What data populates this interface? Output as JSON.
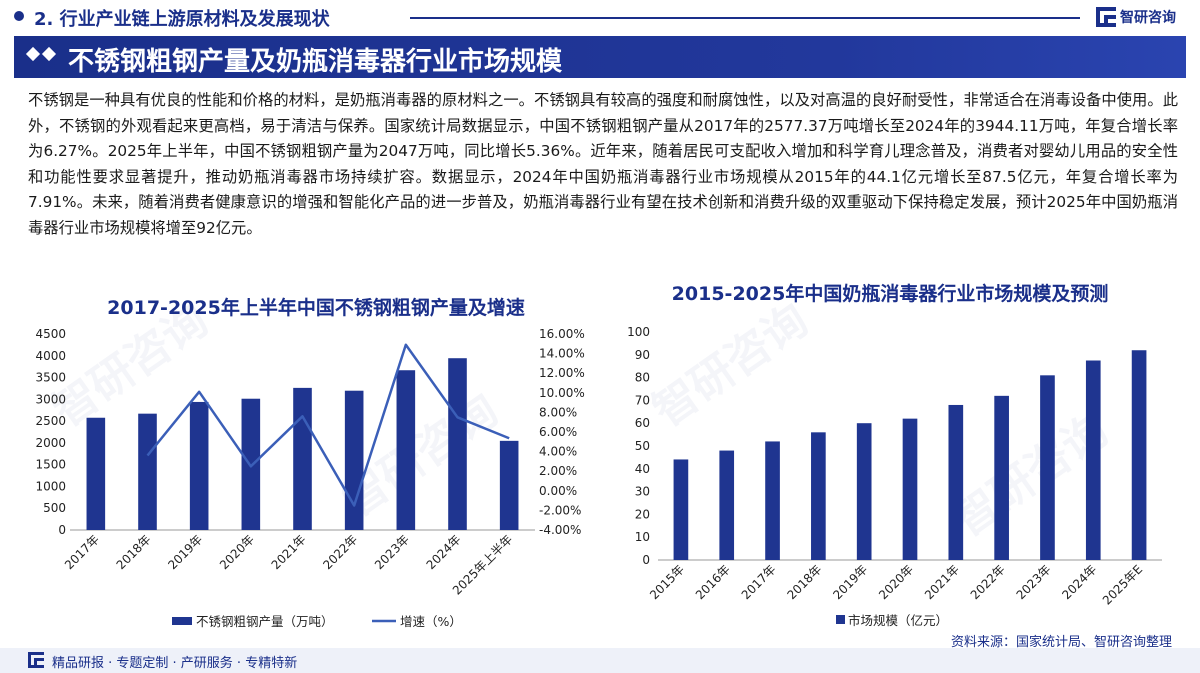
{
  "header": {
    "section_label": "2. 行业产业链上游原材料及发展现状",
    "logo_text": "智研咨询",
    "logo_icon": "zhiyan-logo-icon"
  },
  "title": {
    "text": "不锈钢粗钢产量及奶瓶消毒器行业市场规模"
  },
  "paragraph": "不锈钢是一种具有优良的性能和价格的材料，是奶瓶消毒器的原材料之一。不锈钢具有较高的强度和耐腐蚀性，以及对高温的良好耐受性，非常适合在消毒设备中使用。此外，不锈钢的外观看起来更高档，易于清洁与保养。国家统计局数据显示，中国不锈钢粗钢产量从2017年的2577.37万吨增长至2024年的3944.11万吨，年复合增长率为6.27%。2025年上半年，中国不锈钢粗钢产量为2047万吨，同比增长5.36%。近年来，随着居民可支配收入增加和科学育儿理念普及，消费者对婴幼儿用品的安全性和功能性要求显著提升，推动奶瓶消毒器市场持续扩容。数据显示，2024年中国奶瓶消毒器行业市场规模从2015年的44.1亿元增长至87.5亿元，年复合增长率为7.91%。未来，随着消费者健康意识的增强和智能化产品的进一步普及，奶瓶消毒器行业有望在技术创新和消费升级的双重驱动下保持稳定发展，预计2025年中国奶瓶消毒器行业市场规模将增至92亿元。",
  "watermark": "智研咨询",
  "source": "资料来源：国家统计局、智研咨询整理",
  "footer": {
    "text": "精品研报 · 专题定制 · 产研服务 · 专精特新"
  },
  "colors": {
    "brand": "#1a2f8a",
    "bar": "#1f3590",
    "line": "#3b5fb8"
  },
  "chart_data": [
    {
      "type": "bar",
      "title": "2017-2025年上半年中国不锈钢粗钢产量及增速",
      "categories": [
        "2017年",
        "2018年",
        "2019年",
        "2020年",
        "2021年",
        "2022年",
        "2023年",
        "2024年",
        "2025年上半年"
      ],
      "series": [
        {
          "name": "不锈钢粗钢产量（万吨）",
          "type": "bar",
          "axis": "left",
          "values": [
            2577.37,
            2671,
            2940,
            3014,
            3263,
            3198,
            3668,
            3944.11,
            2047
          ]
        },
        {
          "name": "增速（%）",
          "type": "line",
          "axis": "right",
          "values": [
            null,
            3.6,
            10.1,
            2.5,
            7.6,
            -1.5,
            14.9,
            7.5,
            5.36
          ]
        }
      ],
      "ylim": [
        0,
        4500
      ],
      "yticks": [
        0,
        500,
        1000,
        1500,
        2000,
        2500,
        3000,
        3500,
        4000,
        4500
      ],
      "y2lim": [
        -4,
        16
      ],
      "y2ticks": [
        "-4.00%",
        "-2.00%",
        "0.00%",
        "2.00%",
        "4.00%",
        "6.00%",
        "8.00%",
        "10.00%",
        "12.00%",
        "14.00%",
        "16.00%"
      ],
      "grid": false,
      "legend": "bottom"
    },
    {
      "type": "bar",
      "title": "2015-2025年中国奶瓶消毒器行业市场规模及预测",
      "categories": [
        "2015年",
        "2016年",
        "2017年",
        "2018年",
        "2019年",
        "2020年",
        "2021年",
        "2022年",
        "2023年",
        "2024年",
        "2025年E"
      ],
      "series": [
        {
          "name": "市场规模（亿元）",
          "values": [
            44.1,
            48,
            52,
            56,
            60,
            62,
            68,
            72,
            81,
            87.5,
            92
          ]
        }
      ],
      "ylim": [
        0,
        100
      ],
      "yticks": [
        0,
        10,
        20,
        30,
        40,
        50,
        60,
        70,
        80,
        90,
        100
      ],
      "grid": false,
      "legend": "bottom"
    }
  ]
}
